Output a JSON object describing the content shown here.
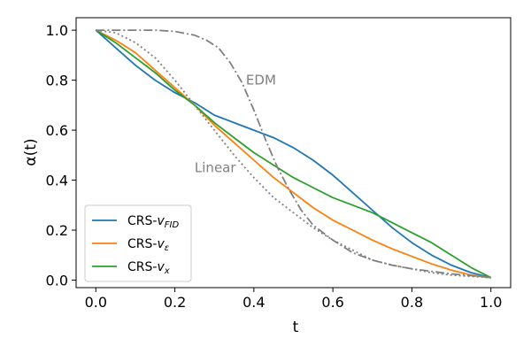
{
  "chart_data": {
    "type": "line",
    "title": "",
    "xlabel": "t",
    "ylabel": "α(t)",
    "xlim": [
      -0.05,
      1.05
    ],
    "ylim": [
      -0.03,
      1.05
    ],
    "xticks": [
      0.0,
      0.2,
      0.4,
      0.6,
      0.8,
      1.0
    ],
    "xtick_labels": [
      "0.0",
      "0.2",
      "0.4",
      "0.6",
      "0.8",
      "1.0"
    ],
    "yticks": [
      0.0,
      0.2,
      0.4,
      0.6,
      0.8,
      1.0
    ],
    "ytick_labels": [
      "0.0",
      "0.2",
      "0.4",
      "0.6",
      "0.8",
      "1.0"
    ],
    "grid": false,
    "legend_position": "lower-left",
    "series": [
      {
        "name": "CRS-v_FID",
        "legend_main": "CRS-",
        "legend_sub": "v",
        "legend_subscript": "FID",
        "color": "#1f77b4",
        "style": "solid",
        "in_legend": true,
        "x": [
          0,
          0.05,
          0.1,
          0.15,
          0.2,
          0.25,
          0.3,
          0.35,
          0.4,
          0.45,
          0.5,
          0.55,
          0.6,
          0.65,
          0.7,
          0.75,
          0.8,
          0.85,
          0.9,
          0.95,
          1.0
        ],
        "y": [
          1.0,
          0.93,
          0.86,
          0.8,
          0.75,
          0.71,
          0.66,
          0.63,
          0.6,
          0.57,
          0.53,
          0.48,
          0.42,
          0.35,
          0.28,
          0.21,
          0.15,
          0.1,
          0.06,
          0.03,
          0.01
        ]
      },
      {
        "name": "CRS-v_ε",
        "legend_main": "CRS-",
        "legend_sub": "v",
        "legend_subscript": "ε",
        "color": "#ff7f0e",
        "style": "solid",
        "in_legend": true,
        "x": [
          0,
          0.05,
          0.1,
          0.15,
          0.2,
          0.25,
          0.3,
          0.35,
          0.4,
          0.45,
          0.5,
          0.55,
          0.6,
          0.65,
          0.7,
          0.75,
          0.8,
          0.85,
          0.9,
          0.95,
          1.0
        ],
        "y": [
          1.0,
          0.96,
          0.91,
          0.84,
          0.77,
          0.7,
          0.62,
          0.55,
          0.48,
          0.41,
          0.35,
          0.29,
          0.24,
          0.2,
          0.16,
          0.125,
          0.095,
          0.065,
          0.04,
          0.02,
          0.01
        ]
      },
      {
        "name": "CRS-v_x",
        "legend_main": "CRS-",
        "legend_sub": "v",
        "legend_subscript": "x",
        "color": "#2ca02c",
        "style": "solid",
        "in_legend": true,
        "x": [
          0,
          0.05,
          0.1,
          0.15,
          0.2,
          0.25,
          0.3,
          0.35,
          0.4,
          0.45,
          0.5,
          0.55,
          0.6,
          0.65,
          0.7,
          0.75,
          0.8,
          0.85,
          0.9,
          0.95,
          1.0
        ],
        "y": [
          1.0,
          0.95,
          0.89,
          0.83,
          0.76,
          0.7,
          0.63,
          0.57,
          0.51,
          0.46,
          0.41,
          0.37,
          0.33,
          0.3,
          0.27,
          0.23,
          0.19,
          0.15,
          0.1,
          0.05,
          0.01
        ]
      },
      {
        "name": "EDM",
        "color": "#808080",
        "style": "dashdot",
        "in_legend": false,
        "x": [
          0,
          0.05,
          0.1,
          0.15,
          0.2,
          0.25,
          0.28,
          0.31,
          0.34,
          0.37,
          0.4,
          0.43,
          0.46,
          0.49,
          0.52,
          0.55,
          0.6,
          0.65,
          0.7,
          0.75,
          0.8,
          0.85,
          0.9,
          0.95,
          1.0
        ],
        "y": [
          1.0,
          1.0,
          1.0,
          1.0,
          0.995,
          0.98,
          0.96,
          0.93,
          0.87,
          0.79,
          0.68,
          0.56,
          0.45,
          0.36,
          0.28,
          0.22,
          0.16,
          0.11,
          0.08,
          0.06,
          0.045,
          0.035,
          0.025,
          0.018,
          0.01
        ]
      },
      {
        "name": "Linear",
        "color": "#808080",
        "style": "dotted",
        "in_legend": false,
        "x": [
          0,
          0.05,
          0.1,
          0.15,
          0.2,
          0.25,
          0.3,
          0.35,
          0.4,
          0.45,
          0.5,
          0.55,
          0.6,
          0.65,
          0.7,
          0.75,
          0.8,
          0.85,
          0.9,
          0.95,
          1.0
        ],
        "y": [
          1.0,
          0.99,
          0.95,
          0.89,
          0.8,
          0.7,
          0.6,
          0.5,
          0.41,
          0.33,
          0.27,
          0.21,
          0.16,
          0.12,
          0.08,
          0.06,
          0.045,
          0.03,
          0.02,
          0.015,
          0.01
        ]
      }
    ],
    "annotations": [
      {
        "text": "EDM",
        "x": 0.38,
        "y": 0.8
      },
      {
        "text": "Linear",
        "x": 0.25,
        "y": 0.45
      }
    ]
  }
}
